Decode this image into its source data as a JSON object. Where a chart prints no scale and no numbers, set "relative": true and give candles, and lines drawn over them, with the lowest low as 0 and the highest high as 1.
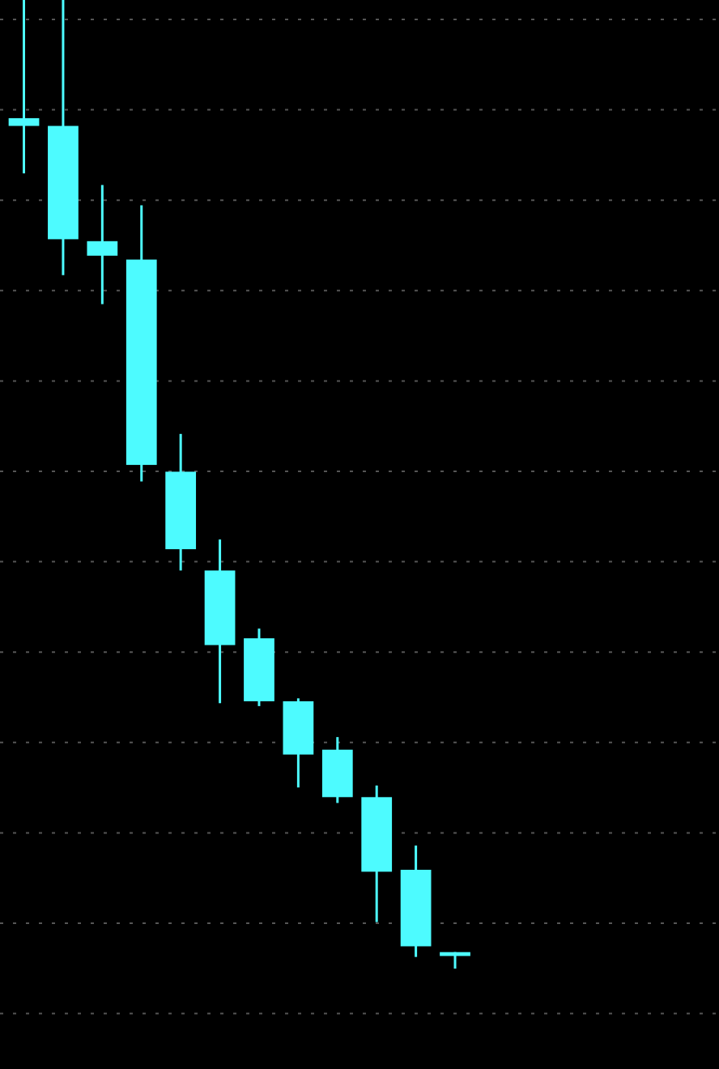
{
  "chart_data": {
    "type": "candlestick",
    "relative": true,
    "grid": "y",
    "categories": [
      null,
      null,
      null,
      null,
      null,
      null,
      null,
      null,
      null,
      null,
      null,
      null,
      null,
      null,
      null,
      null,
      null,
      null
    ],
    "color": "#4dfbff",
    "ohlc": [
      [
        0.878,
        1,
        0.821,
        0.87
      ],
      [
        0.87,
        1,
        0.716,
        0.753
      ],
      [
        0.751,
        0.809,
        0.686,
        0.736
      ],
      [
        0.732,
        0.788,
        0.503,
        0.52
      ],
      [
        0.513,
        0.552,
        0.411,
        0.433
      ],
      [
        0.411,
        0.443,
        0.274,
        0.334
      ],
      [
        0.341,
        0.351,
        0.271,
        0.276
      ],
      [
        0.276,
        0.279,
        0.187,
        0.221
      ],
      [
        0.226,
        0.239,
        0.171,
        0.177
      ],
      [
        0.177,
        0.189,
        0.048,
        0.1
      ],
      [
        0.102,
        0.127,
        0.012,
        0.023
      ],
      [
        0.017,
        0.017,
        0,
        0.013
      ],
      null,
      null,
      null,
      null,
      null,
      null
    ]
  }
}
